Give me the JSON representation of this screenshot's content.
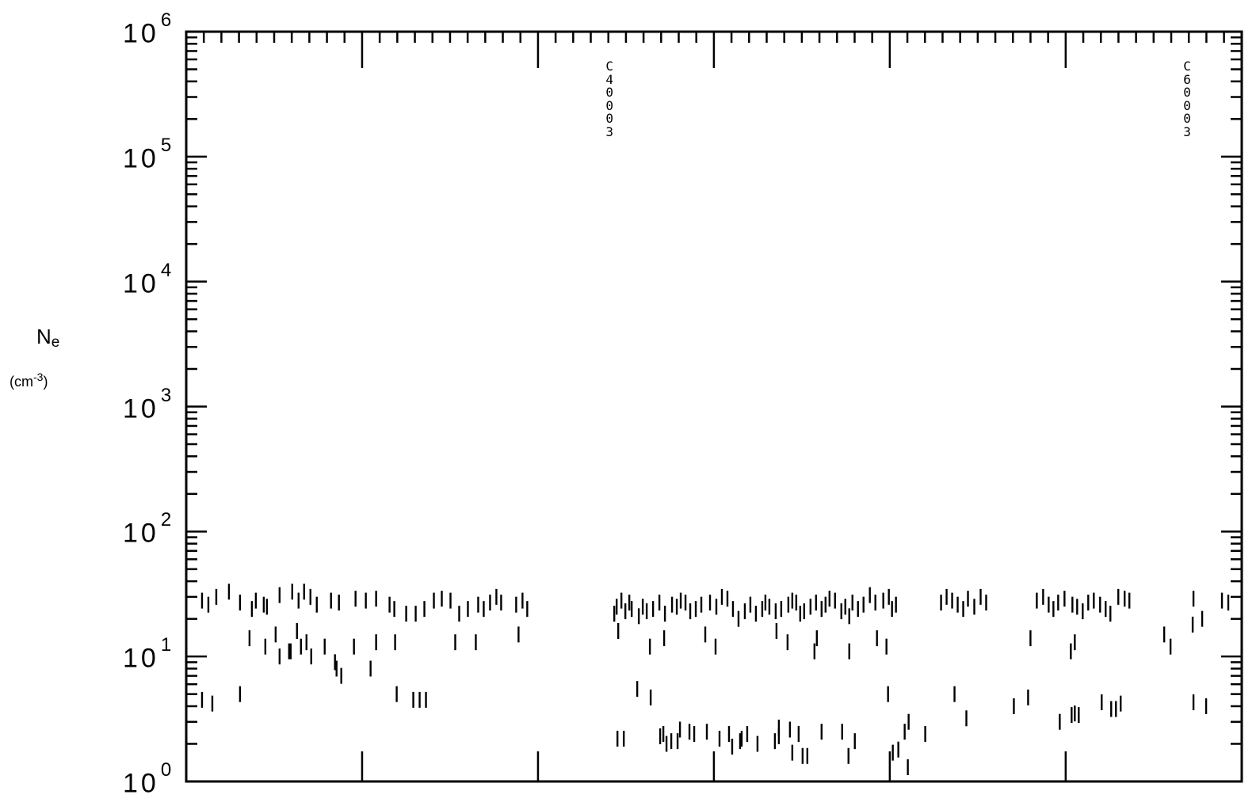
{
  "chart_data": {
    "type": "scatter",
    "marker": "vertical-dash",
    "ylabel_symbol": "N",
    "ylabel_subscript": "e",
    "ylabel_unit_base": "(cm",
    "ylabel_unit_exp": "-3",
    "ylabel_unit_close": ")",
    "yscale": "log",
    "ylim": [
      1,
      1000000
    ],
    "xlim": [
      0,
      1334
    ],
    "y_tick_labels": [
      {
        "base": "10",
        "exp": "0",
        "value": 1
      },
      {
        "base": "10",
        "exp": "1",
        "value": 10
      },
      {
        "base": "10",
        "exp": "2",
        "value": 100
      },
      {
        "base": "10",
        "exp": "3",
        "value": 1000
      },
      {
        "base": "10",
        "exp": "4",
        "value": 10000
      },
      {
        "base": "10",
        "exp": "5",
        "value": 100000
      },
      {
        "base": "10",
        "exp": "6",
        "value": 1000000
      }
    ],
    "grid": false,
    "annotations": [
      {
        "text": "C40003",
        "x": 535
      },
      {
        "text": "C60003",
        "x": 1265
      }
    ],
    "series": [
      {
        "x": [
          20,
          28,
          38,
          54,
          68,
          83,
          88,
          98,
          102,
          118,
          134,
          142,
          149,
          157,
          165,
          183,
          193,
          214,
          227,
          240,
          257,
          263,
          278,
          290,
          301,
          313,
          323,
          334,
          345,
          356,
          369,
          376,
          384,
          392,
          398,
          417,
          425,
          431,
          541,
          544,
          550,
          555,
          560,
          563,
          572,
          577,
          582,
          590,
          598,
          605,
          614,
          620,
          625,
          631,
          637,
          644,
          651,
          662,
          670,
          677,
          684,
          691,
          698,
          706,
          713,
          720,
          728,
          732,
          737,
          745,
          752,
          761,
          766,
          771,
          776,
          781,
          789,
          796,
          803,
          808,
          813,
          820,
          828,
          833,
          838,
          842,
          849,
          856,
          864,
          871,
          881,
          888,
          892,
          897,
          954,
          961,
          968,
          975,
          982,
          988,
          996,
          1004,
          1011,
          1075,
          1083,
          1090,
          1096,
          1102,
          1110,
          1120,
          1126,
          1133,
          1140,
          1147,
          1155,
          1162,
          1168,
          1178,
          1186,
          1192,
          1273,
          1284,
          1309,
          1317
        ],
        "y": [
          28,
          26,
          30,
          33,
          27,
          24,
          28,
          26,
          25,
          31,
          33,
          28,
          33,
          30,
          26,
          28,
          27,
          29,
          28,
          29,
          26,
          24,
          22,
          22,
          24,
          28,
          29,
          28,
          22,
          24,
          26,
          24,
          27,
          30,
          27,
          26,
          28,
          24,
          22,
          25,
          28,
          23,
          27,
          24,
          21,
          25,
          23,
          24,
          27,
          22,
          26,
          25,
          28,
          27,
          23,
          24,
          26,
          27,
          25,
          30,
          29,
          24,
          20,
          23,
          26,
          22,
          24,
          27,
          25,
          23,
          24,
          26,
          28,
          27,
          22,
          23,
          25,
          27,
          24,
          26,
          29,
          28,
          23,
          25,
          21,
          27,
          24,
          26,
          31,
          27,
          28,
          30,
          24,
          26,
          27,
          30,
          28,
          26,
          24,
          29,
          25,
          30,
          27,
          28,
          30,
          26,
          24,
          27,
          29,
          26,
          25,
          23,
          27,
          28,
          26,
          24,
          22,
          30,
          29,
          28,
          29,
          20,
          28,
          27
        ]
      },
      {
        "x": [
          80,
          100,
          113,
          132,
          140,
          152,
          175,
          188,
          240,
          264,
          340,
          366,
          420,
          546,
          586,
          604,
          656,
          669,
          746,
          760,
          794,
          797,
          838,
          873,
          885,
          1067,
          1118,
          1123,
          1236,
          1244,
          1272
        ],
        "y": [
          14,
          12,
          15,
          11,
          16,
          13,
          12,
          9,
          13,
          13,
          13,
          13,
          15,
          16,
          12,
          14,
          15,
          12,
          16,
          13,
          11,
          14,
          11,
          14,
          12,
          14,
          11,
          13,
          15,
          12,
          18
        ],
        "type": "second-band"
      },
      {
        "x": [
          118,
          130,
          145,
          158,
          190,
          196,
          212,
          233
        ],
        "y": [
          10,
          11,
          12,
          10,
          8,
          7,
          12,
          8
        ]
      },
      {
        "x": [
          20,
          33,
          68,
          266,
          287,
          295,
          303,
          570,
          587,
          603,
          624,
          636,
          642,
          658,
          674,
          686,
          702,
          749,
          763,
          774,
          803,
          887,
          908,
          913,
          934,
          971,
          986,
          1046,
          1064,
          1104,
          1119,
          1123,
          1128,
          1157,
          1169,
          1175,
          1181,
          1273,
          1289
        ],
        "y": [
          4.5,
          4.2,
          5,
          5,
          4.5,
          4.5,
          4.5,
          5.5,
          4.7,
          2.4,
          2.6,
          2.5,
          2.4,
          2.5,
          2.2,
          2.4,
          2.2,
          2.7,
          2.6,
          2.4,
          2.5,
          5,
          2.5,
          3.0,
          2.4,
          5,
          3.2,
          4,
          4.7,
          3.0,
          3.4,
          3.5,
          3.4,
          4.3,
          3.8,
          3.8,
          4.2,
          4.3,
          4
        ]
      },
      {
        "x": [
          545,
          553,
          599,
          607,
          613,
          621,
          690,
          700,
          709,
          722,
          744,
          749,
          766,
          779,
          785,
          829,
          837,
          845,
          893,
          900,
          912
        ],
        "y": [
          2.2,
          2.2,
          2.3,
          2.0,
          2.1,
          2.1,
          1.9,
          2.1,
          2.4,
          2.0,
          2.1,
          2.3,
          1.7,
          1.6,
          1.6,
          2.5,
          1.6,
          2.1,
          1.7,
          1.8,
          1.3
        ]
      }
    ]
  }
}
